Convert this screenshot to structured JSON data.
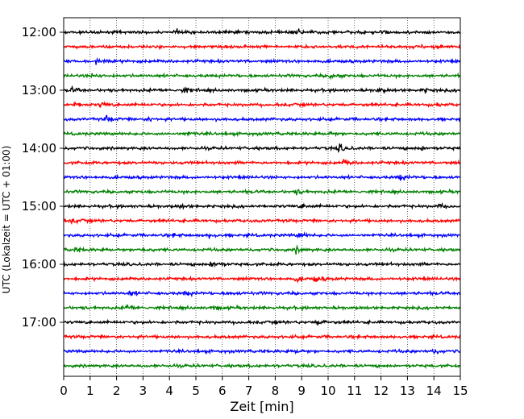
{
  "chart_data": {
    "type": "line",
    "subtype": "helicorder",
    "xlabel": "Zeit  [min]",
    "ylabel": "UTC (Lokalzeit = UTC + 01:00)",
    "xlim": [
      0,
      15
    ],
    "x_ticks": [
      0,
      1,
      2,
      3,
      4,
      5,
      6,
      7,
      8,
      9,
      10,
      11,
      12,
      13,
      14,
      15
    ],
    "x_grid": true,
    "y_tick_labels": [
      "12:00",
      "13:00",
      "14:00",
      "15:00",
      "16:00",
      "17:00"
    ],
    "trace_interval_min": 15,
    "trace_colors": [
      "#000000",
      "#ff0000",
      "#0000ff",
      "#008000"
    ],
    "traces": [
      {
        "start": "12:00",
        "color": "#000000",
        "events": [
          {
            "t": 4.3,
            "amp": 0.45
          },
          {
            "t": 8.8,
            "amp": 0.55
          },
          {
            "t": 12.0,
            "amp": 0.35
          }
        ]
      },
      {
        "start": "12:15",
        "color": "#ff0000",
        "events": [
          {
            "t": 14.0,
            "amp": 0.6
          }
        ]
      },
      {
        "start": "12:30",
        "color": "#0000ff",
        "events": [
          {
            "t": 1.2,
            "amp": 0.35
          }
        ]
      },
      {
        "start": "12:45",
        "color": "#008000",
        "events": [
          {
            "t": 1.1,
            "amp": 0.35
          },
          {
            "t": 10.1,
            "amp": 0.55
          }
        ]
      },
      {
        "start": "13:00",
        "color": "#000000",
        "events": [
          {
            "t": 0.3,
            "amp": 0.4
          },
          {
            "t": 4.5,
            "amp": 0.55
          },
          {
            "t": 11.9,
            "amp": 0.45
          },
          {
            "t": 13.6,
            "amp": 0.35
          }
        ]
      },
      {
        "start": "13:15",
        "color": "#ff0000",
        "events": [
          {
            "t": 0.4,
            "amp": 0.4
          },
          {
            "t": 1.4,
            "amp": 0.45
          },
          {
            "t": 14.1,
            "amp": 0.3
          }
        ]
      },
      {
        "start": "13:30",
        "color": "#0000ff",
        "events": [
          {
            "t": 1.6,
            "amp": 0.6
          },
          {
            "t": 3.2,
            "amp": 0.3
          }
        ]
      },
      {
        "start": "13:45",
        "color": "#008000",
        "events": [
          {
            "t": 4.6,
            "amp": 0.35
          },
          {
            "t": 10.0,
            "amp": 0.4
          }
        ]
      },
      {
        "start": "14:00",
        "color": "#000000",
        "events": [
          {
            "t": 10.4,
            "amp": 0.8
          },
          {
            "t": 13.5,
            "amp": 0.4
          }
        ]
      },
      {
        "start": "14:15",
        "color": "#ff0000",
        "events": [
          {
            "t": 10.6,
            "amp": 0.55
          }
        ]
      },
      {
        "start": "14:30",
        "color": "#0000ff",
        "events": [
          {
            "t": 12.7,
            "amp": 0.55
          }
        ]
      },
      {
        "start": "14:45",
        "color": "#008000",
        "events": [
          {
            "t": 8.8,
            "amp": 0.45
          }
        ]
      },
      {
        "start": "15:00",
        "color": "#000000",
        "events": [
          {
            "t": 4.4,
            "amp": 0.3
          },
          {
            "t": 9.0,
            "amp": 0.4
          },
          {
            "t": 14.2,
            "amp": 0.4
          }
        ]
      },
      {
        "start": "15:15",
        "color": "#ff0000",
        "events": [
          {
            "t": 0.3,
            "amp": 0.45
          }
        ]
      },
      {
        "start": "15:30",
        "color": "#0000ff",
        "events": [
          {
            "t": 4.1,
            "amp": 0.35
          },
          {
            "t": 5.5,
            "amp": 0.4
          },
          {
            "t": 8.9,
            "amp": 0.5
          }
        ]
      },
      {
        "start": "15:45",
        "color": "#008000",
        "events": [
          {
            "t": 0.4,
            "amp": 0.4
          },
          {
            "t": 2.9,
            "amp": 0.35
          },
          {
            "t": 8.8,
            "amp": 0.55
          }
        ]
      },
      {
        "start": "16:00",
        "color": "#000000",
        "events": [
          {
            "t": 5.6,
            "amp": 0.95
          }
        ]
      },
      {
        "start": "16:15",
        "color": "#ff0000",
        "events": [
          {
            "t": 8.8,
            "amp": 0.5
          },
          {
            "t": 9.5,
            "amp": 0.6
          }
        ]
      },
      {
        "start": "16:30",
        "color": "#0000ff",
        "events": [
          {
            "t": 2.5,
            "amp": 0.4
          },
          {
            "t": 4.6,
            "amp": 0.4
          },
          {
            "t": 6.3,
            "amp": 0.25
          }
        ]
      },
      {
        "start": "16:45",
        "color": "#008000",
        "events": [
          {
            "t": 2.4,
            "amp": 0.4
          },
          {
            "t": 5.6,
            "amp": 0.4
          }
        ]
      },
      {
        "start": "17:00",
        "color": "#000000",
        "events": [
          {
            "t": 9.6,
            "amp": 0.5
          }
        ]
      },
      {
        "start": "17:15",
        "color": "#ff0000",
        "events": []
      },
      {
        "start": "17:30",
        "color": "#0000ff",
        "events": [
          {
            "t": 8.8,
            "amp": 0.3
          },
          {
            "t": 14.0,
            "amp": 0.35
          }
        ]
      },
      {
        "start": "17:45",
        "color": "#008000",
        "events": []
      }
    ]
  }
}
